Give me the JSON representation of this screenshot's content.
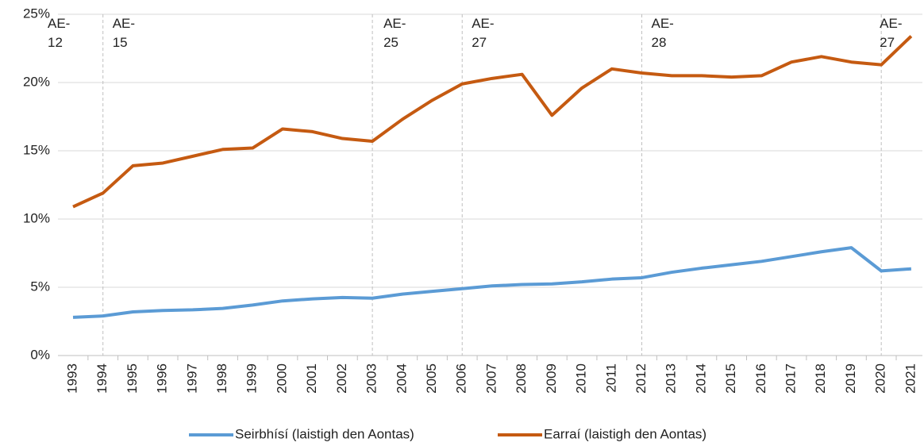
{
  "chart_data": {
    "type": "line",
    "categories": [
      "1993",
      "1994",
      "1995",
      "1996",
      "1997",
      "1998",
      "1999",
      "2000",
      "2001",
      "2002",
      "2003",
      "2004",
      "2005",
      "2006",
      "2007",
      "2008",
      "2009",
      "2010",
      "2011",
      "2012",
      "2013",
      "2014",
      "2015",
      "2016",
      "2017",
      "2018",
      "2019",
      "2020",
      "2021"
    ],
    "series": [
      {
        "name": "Seirbhísí (laistigh den Aontas)",
        "color": "#5b9bd5",
        "values": [
          2.8,
          2.9,
          3.2,
          3.3,
          3.35,
          3.45,
          3.7,
          4.0,
          4.15,
          4.25,
          4.2,
          4.5,
          4.7,
          4.9,
          5.1,
          5.2,
          5.25,
          5.4,
          5.6,
          5.7,
          6.1,
          6.4,
          6.65,
          6.9,
          7.25,
          7.6,
          7.9,
          6.2,
          6.35
        ]
      },
      {
        "name": "Earraí (laistigh den Aontas)",
        "color": "#c55a11",
        "values": [
          10.9,
          11.9,
          13.9,
          14.1,
          14.6,
          15.1,
          15.2,
          16.6,
          16.4,
          15.9,
          15.7,
          17.3,
          18.7,
          19.9,
          20.3,
          20.6,
          17.6,
          19.6,
          21.0,
          20.7,
          20.5,
          20.5,
          20.4,
          20.5,
          21.5,
          21.9,
          21.5,
          21.3,
          23.4
        ]
      }
    ],
    "ylim": [
      0,
      25
    ],
    "yticks": [
      {
        "value": 0,
        "label": "0%"
      },
      {
        "value": 5,
        "label": "5%"
      },
      {
        "value": 10,
        "label": "10%"
      },
      {
        "value": 15,
        "label": "15%"
      },
      {
        "value": 20,
        "label": "20%"
      },
      {
        "value": 25,
        "label": "25%"
      }
    ],
    "grid": true,
    "legend": "bottom",
    "annotations": [
      {
        "text": "AE-12",
        "category": "1993"
      },
      {
        "text": "AE-15",
        "category": "1994"
      },
      {
        "text": "AE-25",
        "category": "2003"
      },
      {
        "text": "AE-27",
        "category": "2006"
      },
      {
        "text": "AE-28",
        "category": "2012"
      },
      {
        "text": "AE-27",
        "category": "2020"
      }
    ]
  }
}
